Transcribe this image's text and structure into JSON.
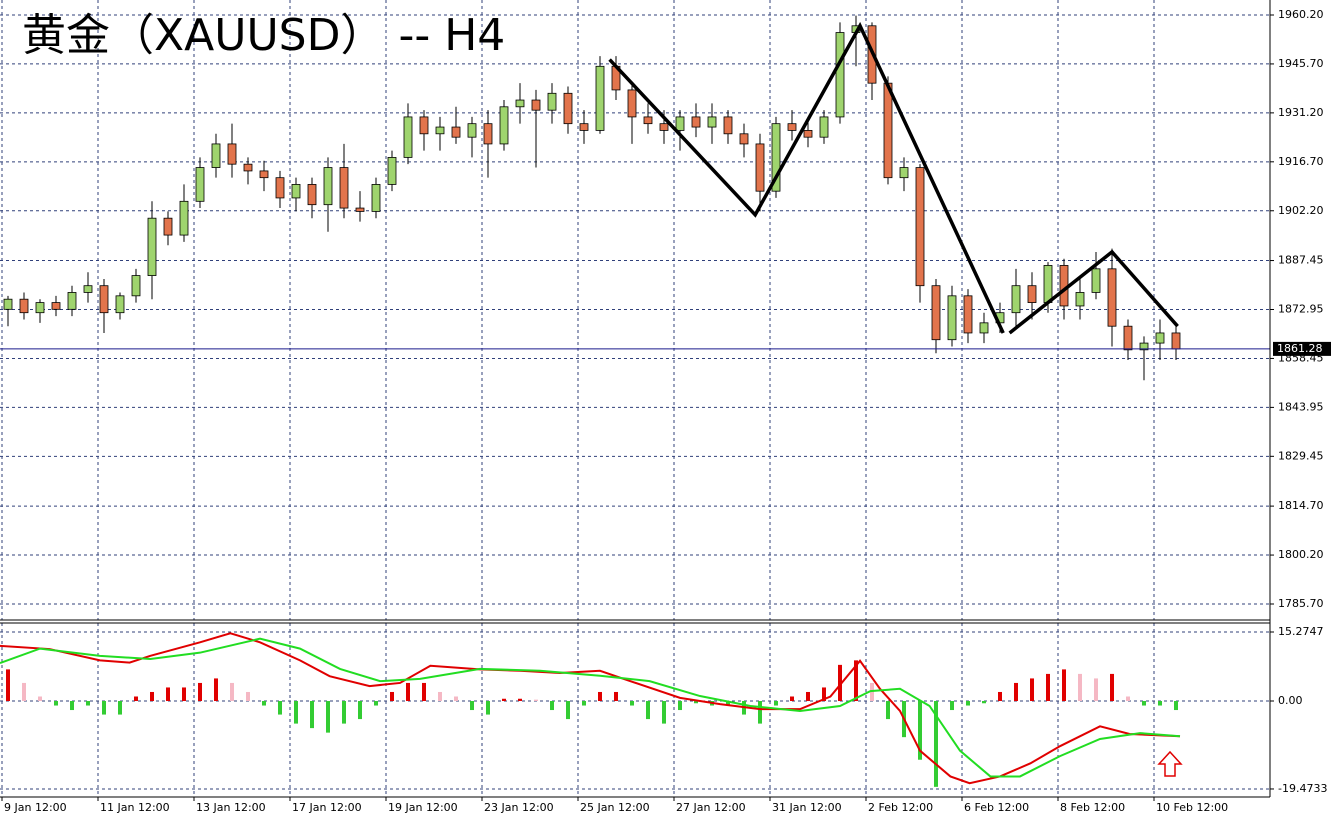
{
  "chart_data": [
    {
      "type": "candlestick",
      "title": "黄金（XAUUSD）  -- H4",
      "colors": {
        "up": "#9fd46e",
        "down": "#e2744c",
        "outline": "#000000",
        "trend": "#000000",
        "last": "#1a1a8c"
      },
      "xlim": [
        -0.5,
        78.875
      ],
      "ylim": [
        1780.96,
        1964.64
      ],
      "yticks": [
        {
          "value": 1960.2,
          "label": "1960.20"
        },
        {
          "value": 1945.7,
          "label": "1945.70"
        },
        {
          "value": 1931.2,
          "label": "1931.20"
        },
        {
          "value": 1916.7,
          "label": "1916.70"
        },
        {
          "value": 1902.2,
          "label": "1902.20"
        },
        1887.45,
        1872.95,
        1858.45,
        1843.95,
        1829.45,
        {
          "value": 1814.7,
          "label": "1814.70"
        },
        {
          "value": 1800.2,
          "label": "1800.20"
        },
        {
          "value": 1785.7,
          "label": "1785.70"
        }
      ],
      "grid": true,
      "last_price": 1861.28,
      "open": [
        1873,
        1876,
        1872,
        1875,
        1873,
        1878,
        1880,
        1872,
        1877,
        1883,
        1900,
        1895,
        1905,
        1915,
        1922,
        1916,
        1914,
        1912,
        1906,
        1910,
        1904,
        1915,
        1903,
        1902,
        1910,
        1918,
        1930,
        1925,
        1927,
        1924,
        1928,
        1922,
        1933,
        1935,
        1932,
        1937,
        1928,
        1926,
        1945,
        1938,
        1930,
        1928,
        1926,
        1930,
        1927,
        1930,
        1925,
        1922,
        1908,
        1928,
        1926,
        1924,
        1930,
        1955,
        1957,
        1940,
        1912,
        1915,
        1880,
        1864,
        1877,
        1866,
        1869,
        1872,
        1880,
        1875,
        1886,
        1874,
        1878,
        1885,
        1868,
        1861,
        1863,
        1866
      ],
      "high": [
        1877,
        1878,
        1876,
        1877,
        1880,
        1884,
        1882,
        1878,
        1885,
        1905,
        1902,
        1910,
        1918,
        1925,
        1928,
        1918,
        1917,
        1914,
        1912,
        1912,
        1918,
        1922,
        1908,
        1912,
        1920,
        1934,
        1932,
        1930,
        1933,
        1930,
        1932,
        1935,
        1940,
        1938,
        1940,
        1939,
        1932,
        1948,
        1948,
        1940,
        1934,
        1932,
        1932,
        1934,
        1934,
        1932,
        1928,
        1925,
        1930,
        1932,
        1930,
        1932,
        1958,
        1960,
        1958,
        1942,
        1918,
        1916,
        1882,
        1880,
        1879,
        1872,
        1875,
        1885,
        1884,
        1887,
        1888,
        1882,
        1890,
        1891,
        1870,
        1865,
        1870,
        1868
      ],
      "low": [
        1868,
        1870,
        1869,
        1871,
        1871,
        1875,
        1866,
        1870,
        1875,
        1876,
        1892,
        1893,
        1903,
        1912,
        1912,
        1910,
        1908,
        1903,
        1902,
        1900,
        1896,
        1900,
        1899,
        1900,
        1908,
        1916,
        1920,
        1920,
        1922,
        1918,
        1912,
        1920,
        1928,
        1915,
        1928,
        1925,
        1922,
        1925,
        1935,
        1922,
        1925,
        1922,
        1920,
        1924,
        1922,
        1922,
        1918,
        1902,
        1906,
        1923,
        1921,
        1922,
        1928,
        1945,
        1935,
        1910,
        1908,
        1875,
        1860,
        1862,
        1863,
        1863,
        1866,
        1868,
        1870,
        1872,
        1870,
        1870,
        1876,
        1862,
        1858,
        1852,
        1858,
        1858
      ],
      "close": [
        1876,
        1872,
        1875,
        1873,
        1878,
        1880,
        1872,
        1877,
        1883,
        1900,
        1895,
        1905,
        1915,
        1922,
        1916,
        1914,
        1912,
        1906,
        1910,
        1904,
        1915,
        1903,
        1902,
        1910,
        1918,
        1930,
        1925,
        1927,
        1924,
        1928,
        1922,
        1933,
        1935,
        1932,
        1937,
        1928,
        1926,
        1945,
        1938,
        1930,
        1928,
        1926,
        1930,
        1927,
        1930,
        1925,
        1922,
        1908,
        1928,
        1926,
        1924,
        1930,
        1955,
        1957,
        1940,
        1912,
        1915,
        1880,
        1864,
        1877,
        1866,
        1869,
        1872,
        1880,
        1875,
        1886,
        1874,
        1878,
        1885,
        1868,
        1861,
        1863,
        1866,
        1861.28
      ],
      "trend_lines": [
        {
          "x": [
            37.6,
            46.7,
            53.25,
            62.2
          ],
          "values": [
            1947,
            1901,
            1957,
            1866
          ]
        },
        {
          "x": [
            62.6,
            69,
            73.1
          ],
          "values": [
            1866,
            1890,
            1868
          ]
        }
      ]
    },
    {
      "type": "macd",
      "xlim": [
        -0.5,
        78.875
      ],
      "ylim": [
        -21.25,
        17.27
      ],
      "yticks": [
        15.2747,
        {
          "value": 0,
          "label": "0.00"
        },
        -19.4733
      ],
      "xticks": [
        {
          "value": -0.375,
          "label": "9 Jan 12:00"
        },
        {
          "value": 5.625,
          "label": "11 Jan 12:00"
        },
        {
          "value": 11.625,
          "label": "13 Jan 12:00"
        },
        {
          "value": 17.625,
          "label": "17 Jan 12:00"
        },
        {
          "value": 23.625,
          "label": "19 Jan 12:00"
        },
        {
          "value": 29.625,
          "label": "23 Jan 12:00"
        },
        {
          "value": 35.625,
          "label": "25 Jan 12:00"
        },
        {
          "value": 41.625,
          "label": "27 Jan 12:00"
        },
        {
          "value": 47.625,
          "label": "31 Jan 12:00"
        },
        {
          "value": 53.625,
          "label": "2 Feb 12:00"
        },
        {
          "value": 59.625,
          "label": "6 Feb 12:00"
        },
        {
          "value": 65.625,
          "label": "8 Feb 12:00"
        },
        {
          "value": 71.625,
          "label": "10 Feb 12:00"
        }
      ],
      "grid": true,
      "histogram": {
        "colors": {
          "rising": "#e00000",
          "fading": "#f5b8c4",
          "negative": "#33cc33"
        },
        "values": [
          7,
          4,
          1,
          -1,
          -2,
          -1,
          -3,
          -3,
          1,
          2,
          3,
          3,
          4,
          5,
          4,
          2,
          -1,
          -3,
          -5,
          -6,
          -7,
          -5,
          -4,
          -1,
          2,
          4,
          4,
          2,
          1,
          -2,
          -3,
          0.5,
          0.5,
          0.3,
          -2,
          -4,
          -1,
          2,
          2,
          -1,
          -4,
          -5,
          -2,
          -0.5,
          -1,
          -1,
          -3,
          -5,
          -1,
          1,
          2,
          3,
          8,
          9,
          4,
          -4,
          -8,
          -13,
          -19,
          -2,
          -1,
          -0.5,
          2,
          4,
          5,
          6,
          7,
          6,
          5,
          6,
          1,
          -1,
          -1,
          -2
        ]
      },
      "series": [
        {
          "color": "#e00000",
          "x": [
            -0.5,
            2.6,
            5.75,
            7.6,
            8.9,
            12,
            13.9,
            15.75,
            18.25,
            20.1,
            22.6,
            24.5,
            26.4,
            29.5,
            32,
            34.5,
            37,
            38.9,
            42,
            44.5,
            47,
            49.5,
            51.4,
            53.25,
            54.5,
            55.75,
            57,
            58.9,
            60.1,
            62,
            63.9,
            65.75,
            68.25,
            70.1,
            73.25
          ],
          "values": [
            12.2,
            11.5,
            9,
            8.5,
            10,
            13,
            15,
            13,
            9,
            5.5,
            3.3,
            4,
            7.8,
            7,
            6.7,
            6.2,
            6.7,
            4.4,
            0.7,
            -0.7,
            -1.8,
            -1.8,
            1,
            8.9,
            2.7,
            -2.2,
            -11,
            -16.7,
            -18.2,
            -16.7,
            -13.8,
            -10,
            -5.6,
            -7.3,
            -7.8
          ]
        },
        {
          "color": "#22dd22",
          "x": [
            -0.5,
            2,
            5.75,
            8.9,
            12,
            15.75,
            18.25,
            20.75,
            23.25,
            25.75,
            29.5,
            33.25,
            37,
            40.1,
            43.25,
            46.4,
            49.5,
            52,
            53.9,
            55.75,
            57.6,
            59.5,
            61.4,
            63.25,
            65.75,
            68.25,
            70.75,
            73.25
          ],
          "values": [
            8.4,
            11.6,
            10,
            9.3,
            10.7,
            13.8,
            11.6,
            7.1,
            4.4,
            4.9,
            7.1,
            6.7,
            5.6,
            4.4,
            1.1,
            -1.1,
            -2.2,
            -1.1,
            2.2,
            2.7,
            -1.1,
            -11,
            -16.7,
            -16.7,
            -12.2,
            -8.4,
            -7.1,
            -7.8
          ]
        }
      ]
    }
  ]
}
